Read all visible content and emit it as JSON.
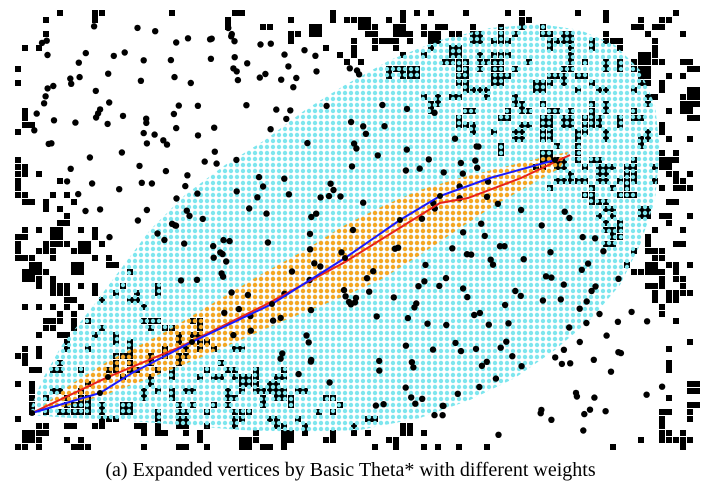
{
  "figure": {
    "caption": "(a)  Expanded vertices by Basic Theta* with different weights",
    "colors": {
      "background": "#ffffff",
      "obstacle": "#000000",
      "expanded_vertex_weight_a": "#7ee6ee",
      "expanded_vertex_weight_b": "#f5a623",
      "path_a": "#e8231b",
      "path_b": "#1a1aff",
      "path_waypoint": "#000000"
    }
  }
}
